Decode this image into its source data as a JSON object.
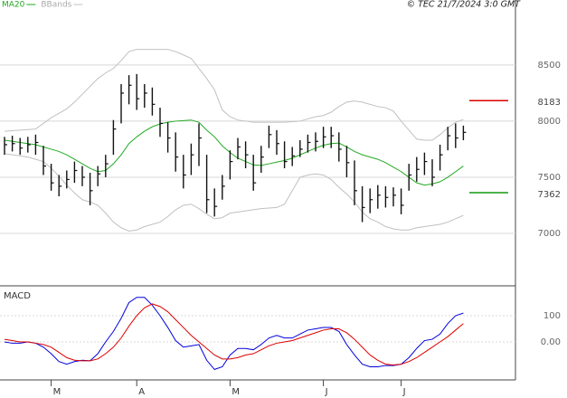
{
  "chart_data": {
    "type": "ohlc",
    "credit": "© TEC 21/7/2024 3:0 GMT",
    "categories": [
      null,
      null,
      null,
      null,
      null,
      null,
      "M",
      null,
      null,
      null,
      null,
      null,
      null,
      null,
      null,
      null,
      null,
      "A",
      null,
      null,
      null,
      null,
      null,
      null,
      null,
      null,
      null,
      null,
      null,
      "M",
      null,
      null,
      null,
      null,
      null,
      null,
      null,
      null,
      null,
      null,
      null,
      "J",
      null,
      null,
      null,
      null,
      null,
      null,
      null,
      null,
      null,
      "J",
      null,
      null,
      null,
      null,
      null,
      null,
      null,
      null
    ],
    "ylim": [
      6540,
      9080
    ],
    "yticks": [
      7000,
      7500,
      8000,
      8500
    ],
    "grid": true,
    "bar_color": "#111111",
    "high": [
      7860,
      7870,
      7850,
      7860,
      7880,
      7780,
      7620,
      7520,
      7560,
      7640,
      7600,
      7540,
      7600,
      7700,
      8010,
      8330,
      8410,
      8420,
      8330,
      8300,
      8120,
      7990,
      7900,
      7700,
      7800,
      7980,
      7700,
      7400,
      7520,
      7740,
      7850,
      7820,
      7700,
      7780,
      7960,
      7920,
      7820,
      7770,
      7830,
      7880,
      7900,
      7950,
      7950,
      7900,
      7780,
      7650,
      7420,
      7400,
      7430,
      7420,
      7410,
      7400,
      7620,
      7680,
      7720,
      7660,
      7790,
      7950,
      7980,
      7960
    ],
    "low": [
      7700,
      7730,
      7700,
      7720,
      7700,
      7520,
      7380,
      7330,
      7400,
      7450,
      7420,
      7250,
      7420,
      7500,
      7700,
      7980,
      8150,
      8100,
      8120,
      8050,
      7860,
      7720,
      7550,
      7400,
      7520,
      7600,
      7180,
      7150,
      7300,
      7480,
      7660,
      7580,
      7380,
      7540,
      7760,
      7700,
      7580,
      7600,
      7680,
      7720,
      7730,
      7760,
      7760,
      7640,
      7500,
      7250,
      7100,
      7180,
      7220,
      7230,
      7240,
      7170,
      7380,
      7460,
      7520,
      7420,
      7560,
      7740,
      7760,
      7830
    ],
    "close": [
      7790,
      7800,
      7760,
      7790,
      7810,
      7600,
      7450,
      7420,
      7480,
      7560,
      7500,
      7380,
      7530,
      7620,
      7930,
      8250,
      8320,
      8200,
      8250,
      8150,
      7980,
      7850,
      7680,
      7520,
      7700,
      7850,
      7300,
      7240,
      7420,
      7640,
      7770,
      7700,
      7450,
      7680,
      7880,
      7800,
      7640,
      7690,
      7750,
      7810,
      7820,
      7860,
      7870,
      7750,
      7630,
      7380,
      7230,
      7300,
      7340,
      7320,
      7340,
      7250,
      7520,
      7570,
      7640,
      7500,
      7700,
      7870,
      7850,
      7900
    ],
    "series": [
      {
        "name": "MA20",
        "color": "#22aa22",
        "values": [
          7830,
          7820,
          7810,
          7800,
          7790,
          7770,
          7750,
          7730,
          7700,
          7660,
          7620,
          7580,
          7550,
          7560,
          7620,
          7700,
          7800,
          7860,
          7910,
          7950,
          7975,
          7990,
          8000,
          8005,
          8010,
          7990,
          7920,
          7860,
          7780,
          7720,
          7670,
          7640,
          7610,
          7605,
          7620,
          7635,
          7650,
          7670,
          7700,
          7730,
          7760,
          7785,
          7800,
          7805,
          7770,
          7730,
          7700,
          7680,
          7660,
          7630,
          7590,
          7550,
          7500,
          7450,
          7430,
          7440,
          7460,
          7500,
          7550,
          7600
        ]
      },
      {
        "name": "BBands",
        "color": "#c0c0c0",
        "upper": [
          7910,
          7915,
          7920,
          7925,
          7930,
          7980,
          8030,
          8070,
          8110,
          8170,
          8240,
          8310,
          8380,
          8430,
          8470,
          8540,
          8620,
          8640,
          8640,
          8640,
          8640,
          8640,
          8620,
          8590,
          8560,
          8470,
          8380,
          8280,
          8100,
          8040,
          8010,
          8000,
          7990,
          7990,
          7990,
          7990,
          7990,
          7995,
          8000,
          8020,
          8040,
          8050,
          8080,
          8130,
          8170,
          8180,
          8170,
          8150,
          8130,
          8120,
          8090,
          8000,
          7920,
          7840,
          7830,
          7830,
          7880,
          7940,
          7990,
          8015
        ],
        "lower": [
          7710,
          7700,
          7690,
          7680,
          7660,
          7640,
          7580,
          7510,
          7430,
          7360,
          7300,
          7280,
          7250,
          7180,
          7100,
          7050,
          7020,
          7030,
          7060,
          7080,
          7100,
          7150,
          7210,
          7250,
          7260,
          7220,
          7170,
          7130,
          7140,
          7180,
          7190,
          7200,
          7210,
          7220,
          7225,
          7230,
          7260,
          7380,
          7500,
          7520,
          7530,
          7520,
          7480,
          7410,
          7350,
          7280,
          7190,
          7130,
          7100,
          7060,
          7040,
          7030,
          7030,
          7050,
          7060,
          7070,
          7080,
          7100,
          7130,
          7160
        ]
      }
    ],
    "price_markers": [
      {
        "value": 8183,
        "color": "#dd0000"
      },
      {
        "value": 7362,
        "color": "#119911"
      }
    ],
    "macd": {
      "title": "MACD",
      "ylim": [
        -145,
        207
      ],
      "yticks": [
        {
          "value": 0,
          "label": "0.00"
        },
        100
      ],
      "line": {
        "color": "#0000dd",
        "values": [
          0,
          -5,
          -5,
          0,
          -5,
          -20,
          -45,
          -75,
          -85,
          -75,
          -70,
          -72,
          -45,
          0,
          40,
          90,
          150,
          170,
          170,
          140,
          100,
          55,
          5,
          -20,
          -15,
          -10,
          -70,
          -105,
          -95,
          -50,
          -25,
          -25,
          -30,
          -10,
          15,
          25,
          15,
          15,
          30,
          45,
          50,
          55,
          55,
          40,
          -10,
          -50,
          -85,
          -95,
          -95,
          -90,
          -90,
          -85,
          -60,
          -25,
          5,
          10,
          30,
          70,
          100,
          110
        ]
      },
      "signal": {
        "color": "#dd0000",
        "values": [
          10,
          5,
          0,
          0,
          -5,
          -10,
          -20,
          -40,
          -60,
          -70,
          -72,
          -72,
          -65,
          -45,
          -20,
          15,
          60,
          100,
          130,
          145,
          135,
          115,
          85,
          55,
          25,
          0,
          -25,
          -50,
          -65,
          -65,
          -60,
          -50,
          -45,
          -30,
          -15,
          -5,
          0,
          5,
          15,
          25,
          35,
          45,
          50,
          50,
          35,
          10,
          -20,
          -50,
          -70,
          -85,
          -88,
          -85,
          -75,
          -60,
          -40,
          -20,
          0,
          20,
          45,
          70
        ]
      }
    }
  }
}
